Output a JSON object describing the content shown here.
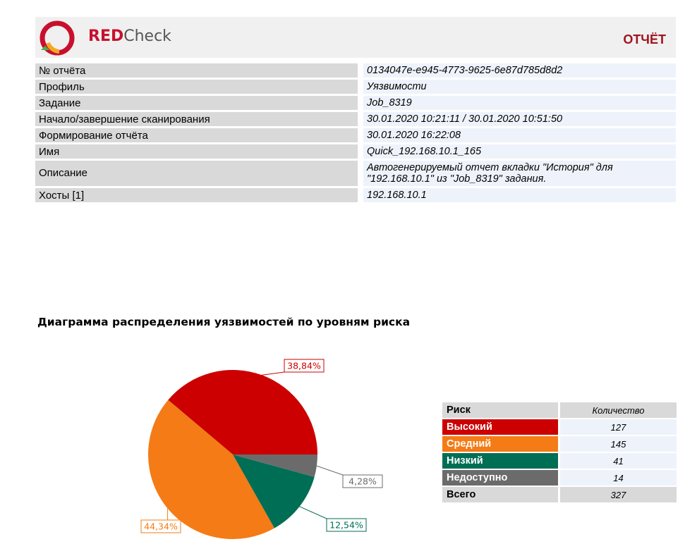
{
  "header": {
    "logo_red": "RED",
    "logo_check": "Check",
    "title": "ОТЧЁТ"
  },
  "info": [
    {
      "key": "№ отчёта",
      "value": "0134047e-e945-4773-9625-6e87d785d8d2"
    },
    {
      "key": "Профиль",
      "value": "Уязвимости"
    },
    {
      "key": "Задание",
      "value": "Job_8319"
    },
    {
      "key": "Начало/завершение сканирования",
      "value": "30.01.2020 10:21:11 / 30.01.2020 10:51:50"
    },
    {
      "key": "Формирование отчёта",
      "value": "30.01.2020 16:22:08"
    },
    {
      "key": "Имя",
      "value": "Quick_192.168.10.1_165"
    },
    {
      "key": "Описание",
      "value_line1": "Автогенерируемый отчет вкладки \"История\" для",
      "value_line2": "\"192.168.10.1\" из \"Job_8319\" задания."
    },
    {
      "key": "Хосты [1]",
      "value": "192.168.10.1"
    }
  ],
  "chart_title": "Диаграмма распределения уязвимостей по уровням риска",
  "risk_table": {
    "col_risk": "Риск",
    "col_count": "Количество",
    "total_label": "Всего",
    "total_value": "327"
  },
  "chart_data": {
    "type": "pie",
    "title": "Диаграмма распределения уязвимостей по уровням риска",
    "slices": [
      {
        "label": "Высокий",
        "value": 127,
        "percent_label": "38,84%",
        "color": "#cc0000"
      },
      {
        "label": "Средний",
        "value": 145,
        "percent_label": "44,34%",
        "color": "#f47b16"
      },
      {
        "label": "Низкий",
        "value": 41,
        "percent_label": "12,54%",
        "color": "#006e54"
      },
      {
        "label": "Недоступно",
        "value": 14,
        "percent_label": "4,28%",
        "color": "#6b6b6b"
      }
    ],
    "total": 327
  }
}
